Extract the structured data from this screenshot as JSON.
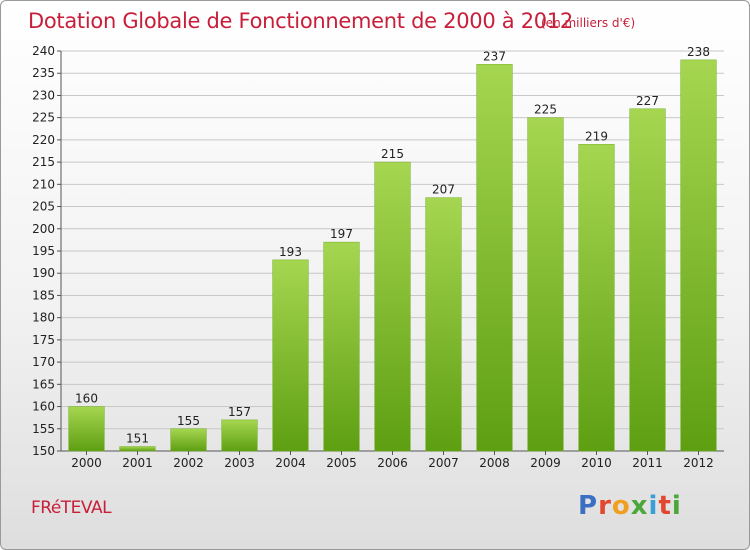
{
  "header": {
    "title": "Dotation Globale de Fonctionnement de 2000 à 2012",
    "unit": "(en milliers d'€)"
  },
  "footer": {
    "commune": "FRéTEVAL",
    "logo_letters": [
      "P",
      "r",
      "o",
      "x",
      "i",
      "t",
      "i"
    ],
    "logo_colors": [
      "#3a6fc4",
      "#e2482f",
      "#f0a020",
      "#4aa83a",
      "#3a9fd8",
      "#e2482f",
      "#4aa83a"
    ]
  },
  "colors": {
    "bar_light": "#a6d651",
    "bar_dark": "#5e9f12",
    "grid": "#c8c8c8"
  },
  "chart_data": {
    "type": "bar",
    "title": "Dotation Globale de Fonctionnement de 2000 à 2012",
    "subtitle": "(en milliers d'€)",
    "xlabel": "",
    "ylabel": "",
    "categories": [
      "2000",
      "2001",
      "2002",
      "2003",
      "2004",
      "2005",
      "2006",
      "2007",
      "2008",
      "2009",
      "2010",
      "2011",
      "2012"
    ],
    "values": [
      160,
      151,
      155,
      157,
      193,
      197,
      215,
      207,
      237,
      225,
      219,
      227,
      238
    ],
    "ylim": [
      150,
      240
    ],
    "ytick_step": 5,
    "grid": true,
    "legend": "none"
  }
}
